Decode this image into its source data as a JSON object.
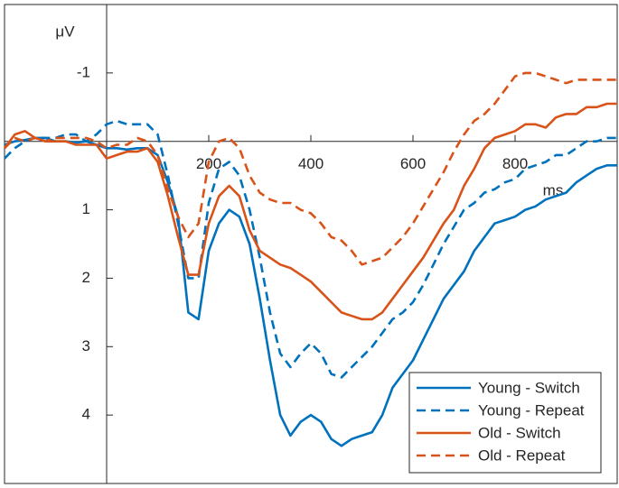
{
  "chart_data": {
    "type": "line",
    "xlabel": "ms",
    "ylabel": "μV",
    "y_reversed": true,
    "legend": "lower right",
    "xlim": [
      -200,
      1000
    ],
    "ylim": [
      -2,
      5
    ],
    "xticks": [
      200,
      400,
      600,
      800
    ],
    "yticks": [
      -1,
      1,
      2,
      3,
      4
    ],
    "x": [
      -200,
      -180,
      -160,
      -140,
      -120,
      -100,
      -80,
      -60,
      -40,
      -20,
      0,
      20,
      40,
      60,
      80,
      100,
      120,
      140,
      160,
      180,
      200,
      220,
      240,
      260,
      280,
      300,
      320,
      340,
      360,
      380,
      400,
      420,
      440,
      460,
      480,
      500,
      520,
      540,
      560,
      580,
      600,
      620,
      640,
      660,
      680,
      700,
      720,
      740,
      760,
      780,
      800,
      820,
      840,
      860,
      880,
      900,
      920,
      940,
      960,
      980,
      1000
    ],
    "series": [
      {
        "name": "Young - Switch",
        "color": "#0072bd",
        "dash": false,
        "values": [
          0.05,
          0.0,
          -0.02,
          -0.05,
          -0.05,
          0.0,
          0.0,
          0.02,
          0.0,
          0.05,
          0.1,
          0.1,
          0.12,
          0.1,
          0.1,
          0.2,
          0.6,
          1.1,
          2.5,
          2.6,
          1.6,
          1.2,
          1.0,
          1.1,
          1.5,
          2.3,
          3.2,
          4.0,
          4.3,
          4.1,
          4.0,
          4.1,
          4.35,
          4.45,
          4.35,
          4.3,
          4.25,
          4.0,
          3.6,
          3.4,
          3.2,
          2.9,
          2.6,
          2.3,
          2.1,
          1.9,
          1.6,
          1.4,
          1.2,
          1.15,
          1.1,
          1.0,
          0.95,
          0.85,
          0.8,
          0.75,
          0.6,
          0.5,
          0.4,
          0.35,
          0.35
        ]
      },
      {
        "name": "Young - Repeat",
        "color": "#0072bd",
        "dash": true,
        "values": [
          0.25,
          0.1,
          0.0,
          -0.05,
          -0.05,
          -0.05,
          -0.1,
          -0.1,
          0.0,
          -0.1,
          -0.25,
          -0.3,
          -0.25,
          -0.25,
          -0.25,
          -0.1,
          0.5,
          1.2,
          2.0,
          2.0,
          0.9,
          0.4,
          0.3,
          0.5,
          1.0,
          1.7,
          2.5,
          3.1,
          3.3,
          3.1,
          2.95,
          3.1,
          3.4,
          3.45,
          3.3,
          3.15,
          3.0,
          2.8,
          2.6,
          2.5,
          2.35,
          2.1,
          1.8,
          1.5,
          1.25,
          1.0,
          0.9,
          0.75,
          0.7,
          0.6,
          0.55,
          0.4,
          0.35,
          0.3,
          0.2,
          0.2,
          0.1,
          0.0,
          0.0,
          -0.05,
          -0.05
        ]
      },
      {
        "name": "Old - Switch",
        "color": "#d95319",
        "dash": false,
        "values": [
          0.1,
          -0.1,
          -0.15,
          -0.05,
          0.0,
          0.0,
          0.0,
          0.05,
          0.05,
          0.05,
          0.25,
          0.2,
          0.15,
          0.15,
          0.1,
          0.3,
          0.8,
          1.4,
          1.95,
          1.95,
          1.2,
          0.8,
          0.65,
          0.8,
          1.3,
          1.6,
          1.7,
          1.8,
          1.85,
          1.95,
          2.05,
          2.2,
          2.35,
          2.5,
          2.55,
          2.6,
          2.6,
          2.5,
          2.3,
          2.1,
          1.9,
          1.7,
          1.45,
          1.2,
          1.0,
          0.65,
          0.4,
          0.1,
          -0.05,
          -0.1,
          -0.15,
          -0.25,
          -0.25,
          -0.2,
          -0.35,
          -0.4,
          -0.4,
          -0.5,
          -0.5,
          -0.55,
          -0.55
        ]
      },
      {
        "name": "Old - Repeat",
        "color": "#d95319",
        "dash": true,
        "values": [
          0.1,
          -0.05,
          0.0,
          -0.05,
          0.0,
          -0.05,
          -0.05,
          -0.05,
          -0.05,
          0.0,
          0.1,
          0.05,
          0.05,
          -0.05,
          0.0,
          0.2,
          0.7,
          1.1,
          1.4,
          1.2,
          0.3,
          0.0,
          -0.05,
          0.1,
          0.5,
          0.75,
          0.85,
          0.9,
          0.9,
          1.0,
          1.05,
          1.2,
          1.4,
          1.45,
          1.6,
          1.8,
          1.75,
          1.7,
          1.55,
          1.4,
          1.2,
          0.95,
          0.7,
          0.45,
          0.15,
          -0.1,
          -0.3,
          -0.4,
          -0.55,
          -0.75,
          -0.95,
          -1.0,
          -1.0,
          -0.95,
          -0.9,
          -0.85,
          -0.9,
          -0.9,
          -0.9,
          -0.9,
          -0.9
        ]
      }
    ]
  }
}
